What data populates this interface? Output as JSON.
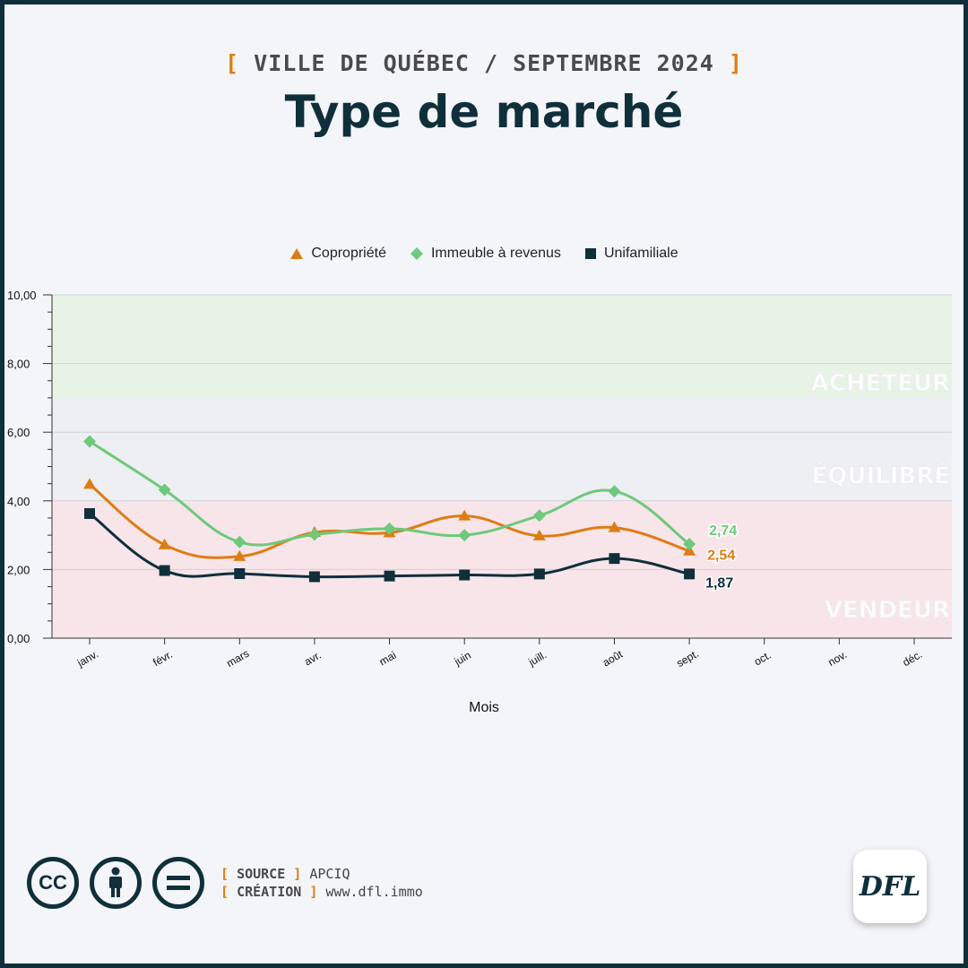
{
  "header": {
    "supertitle_open": "[",
    "supertitle_text": "VILLE DE QUÉBEC / SEPTEMBRE 2024",
    "supertitle_close": "]",
    "title": "Type de marché"
  },
  "colors": {
    "border": "#0f2f3b",
    "accent": "#e07c10",
    "copro": "#de7c14",
    "immeuble": "#6dc97b",
    "unifamiliale": "#0f2f3b",
    "zone_acheteur": "#e6f3e5",
    "zone_equilibre": "#eeeff3",
    "zone_vendeur": "#f8e5e9"
  },
  "chart_data": {
    "type": "line",
    "categories": [
      "janv.",
      "févr.",
      "mars",
      "avr.",
      "mai",
      "juin",
      "juill.",
      "août",
      "sept.",
      "oct.",
      "nov.",
      "déc."
    ],
    "xlabel": "Mois",
    "ylabel": "",
    "ylim": [
      0,
      10
    ],
    "yticks": [
      "0,00",
      "2,00",
      "4,00",
      "6,00",
      "8,00",
      "10,00"
    ],
    "grid": true,
    "legend_position": "top-center",
    "zones": [
      {
        "label": "ACHETEUR",
        "from": 7,
        "to": 10
      },
      {
        "label": "ÉQUILIBRÉ",
        "from": 4,
        "to": 7
      },
      {
        "label": "VENDEUR",
        "from": 0,
        "to": 4
      }
    ],
    "series": [
      {
        "name": "Copropriété",
        "marker": "triangle",
        "color": "#de7c14",
        "values": [
          4.48,
          2.72,
          2.38,
          3.08,
          3.07,
          3.56,
          2.98,
          3.22,
          2.54,
          null,
          null,
          null
        ],
        "end_label": "2,54"
      },
      {
        "name": "Immeuble à revenus",
        "marker": "diamond",
        "color": "#6dc97b",
        "values": [
          5.73,
          4.32,
          2.8,
          3.02,
          3.19,
          3.0,
          3.57,
          4.28,
          2.74,
          null,
          null,
          null
        ],
        "end_label": "2,74"
      },
      {
        "name": "Unifamiliale",
        "marker": "square",
        "color": "#0f2f3b",
        "values": [
          3.63,
          1.97,
          1.88,
          1.79,
          1.81,
          1.84,
          1.87,
          2.32,
          1.87,
          null,
          null,
          null
        ],
        "end_label": "1,87"
      }
    ]
  },
  "footer": {
    "cc_label": "CC",
    "source_label": "SOURCE",
    "source_value": "APCIQ",
    "creation_label": "CRÉATION",
    "creation_value": "www.dfl.immo",
    "logo_text": "DFL"
  }
}
